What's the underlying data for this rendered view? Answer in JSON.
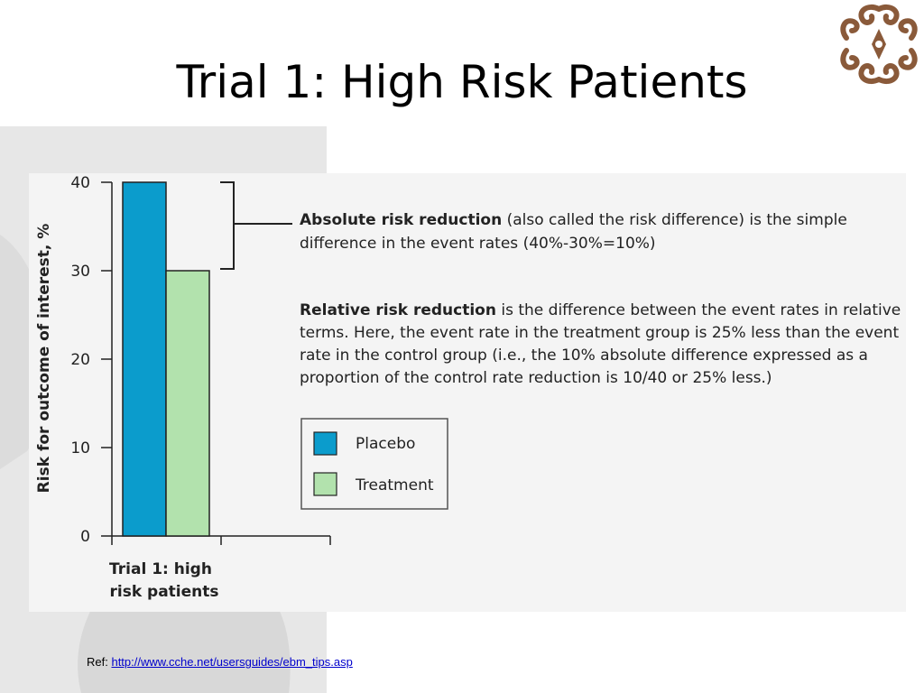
{
  "slide": {
    "title": "Trial 1: High Risk Patients",
    "ref_label": "Ref:",
    "ref_link": "http://www.cche.net/usersguides/ebm_tips.asp"
  },
  "colors": {
    "placebo": "#0b9ccc",
    "treatment": "#b2e2ad",
    "link": "#0000cc",
    "figure_background": "#f4f4f4",
    "logo": "#8a5a3a"
  },
  "chart_data": {
    "type": "bar",
    "categories": [
      "Trial 1: high risk patients"
    ],
    "category_label_lines": [
      "Trial 1: high",
      "risk patients"
    ],
    "series": [
      {
        "name": "Placebo",
        "values": [
          40
        ]
      },
      {
        "name": "Treatment",
        "values": [
          30
        ]
      }
    ],
    "ylabel": "Risk for outcome of interest, %",
    "ylim": [
      0,
      40
    ],
    "yticks": [
      "0",
      "10",
      "20",
      "30",
      "40"
    ],
    "grid": false,
    "legend_placement": "right",
    "annotations": {
      "arr": {
        "bold": "Absolute risk reduction",
        "line1_rest": " (also called the risk difference) is the simple",
        "line2": "difference in the event rates (40%-30%=10%)"
      },
      "rrr": {
        "bold": "Relative risk reduction",
        "line1_rest": " is the difference between the event rates in relative",
        "line2": "terms. Here, the event rate in the treatment group is 25% less than the event",
        "line3": "rate in the control group (i.e., the 10% absolute difference expressed as a",
        "line4": "proportion of the control rate reduction is 10/40 or 25% less.)"
      }
    }
  }
}
